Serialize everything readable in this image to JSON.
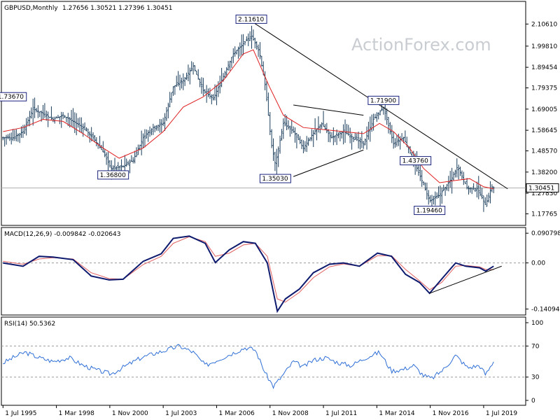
{
  "chart_data": [
    {
      "type": "candlestick",
      "symbol": "GBPUSD",
      "header": {
        "symbol_timeframe": "GBPUSD,Monthly",
        "ohlc": "1.27656 1.30521 1.27396 1.30451"
      },
      "watermark": "ActionForex.com",
      "ylim": [
        1.128,
        2.21
      ],
      "y_ticks": [
        "2.10610",
        "1.99810",
        "1.89454",
        "1.79375",
        "1.69005",
        "1.58645",
        "1.48570",
        "1.38200",
        "1.27830",
        "1.17765"
      ],
      "current_price_label": "1.30451",
      "current_price": 1.30451,
      "x_ticks": [
        "1 Jul 1995",
        "1 Mar 1998",
        "1 Nov 2000",
        "1 Jul 2003",
        "1 Mar 2006",
        "1 Nov 2008",
        "1 Jul 2011",
        "1 Mar 2014",
        "1 Nov 2016",
        "1 Jul 2019"
      ],
      "annotations": [
        {
          "label": "2.11610",
          "date": 2007.9,
          "value": 2.1161
        },
        {
          "label": "1.73670",
          "date": 1995.9,
          "value": 1.7367
        },
        {
          "label": "1.36800",
          "date": 2001.0,
          "value": 1.368
        },
        {
          "label": "1.35030",
          "date": 2009.1,
          "value": 1.3503
        },
        {
          "label": "1.71900",
          "date": 2014.5,
          "value": 1.719
        },
        {
          "label": "1.43760",
          "date": 2016.1,
          "value": 1.4376
        },
        {
          "label": "1.19460",
          "date": 2016.8,
          "value": 1.1946
        }
      ],
      "series": [
        {
          "name": "price",
          "points": [
            [
              1995.5,
              1.55
            ],
            [
              1996.0,
              1.55
            ],
            [
              1996.5,
              1.58
            ],
            [
              1997.0,
              1.69
            ],
            [
              1997.5,
              1.67
            ],
            [
              1998.0,
              1.64
            ],
            [
              1998.5,
              1.66
            ],
            [
              1999.0,
              1.63
            ],
            [
              1999.5,
              1.6
            ],
            [
              2000.0,
              1.55
            ],
            [
              2000.5,
              1.48
            ],
            [
              2000.9,
              1.4
            ],
            [
              2001.5,
              1.41
            ],
            [
              2002.0,
              1.44
            ],
            [
              2002.5,
              1.55
            ],
            [
              2003.0,
              1.6
            ],
            [
              2003.5,
              1.62
            ],
            [
              2004.0,
              1.8
            ],
            [
              2004.5,
              1.83
            ],
            [
              2005.0,
              1.9
            ],
            [
              2005.5,
              1.78
            ],
            [
              2006.0,
              1.74
            ],
            [
              2006.5,
              1.85
            ],
            [
              2007.0,
              1.96
            ],
            [
              2007.5,
              2.01
            ],
            [
              2007.9,
              2.05
            ],
            [
              2008.3,
              1.97
            ],
            [
              2008.6,
              1.8
            ],
            [
              2008.9,
              1.52
            ],
            [
              2009.1,
              1.42
            ],
            [
              2009.5,
              1.62
            ],
            [
              2010.0,
              1.58
            ],
            [
              2010.5,
              1.5
            ],
            [
              2010.9,
              1.56
            ],
            [
              2011.4,
              1.62
            ],
            [
              2011.9,
              1.55
            ],
            [
              2012.5,
              1.58
            ],
            [
              2013.0,
              1.55
            ],
            [
              2013.5,
              1.52
            ],
            [
              2014.0,
              1.64
            ],
            [
              2014.5,
              1.7
            ],
            [
              2015.0,
              1.52
            ],
            [
              2015.5,
              1.55
            ],
            [
              2016.0,
              1.44
            ],
            [
              2016.5,
              1.32
            ],
            [
              2016.8,
              1.24
            ],
            [
              2017.3,
              1.27
            ],
            [
              2017.9,
              1.35
            ],
            [
              2018.2,
              1.41
            ],
            [
              2018.7,
              1.3
            ],
            [
              2019.2,
              1.3
            ],
            [
              2019.6,
              1.22
            ],
            [
              2019.9,
              1.31
            ],
            [
              2020.0,
              1.3045
            ]
          ]
        },
        {
          "name": "moving-average",
          "points": [
            [
              1995.5,
              1.58
            ],
            [
              1996.5,
              1.6
            ],
            [
              1997.5,
              1.64
            ],
            [
              1998.5,
              1.63
            ],
            [
              1999.5,
              1.57
            ],
            [
              2000.5,
              1.5
            ],
            [
              2001.3,
              1.45
            ],
            [
              2002.5,
              1.5
            ],
            [
              2003.5,
              1.58
            ],
            [
              2004.5,
              1.7
            ],
            [
              2005.5,
              1.75
            ],
            [
              2006.5,
              1.83
            ],
            [
              2007.5,
              1.96
            ],
            [
              2008.0,
              1.98
            ],
            [
              2008.8,
              1.8
            ],
            [
              2009.5,
              1.66
            ],
            [
              2010.5,
              1.6
            ],
            [
              2011.5,
              1.59
            ],
            [
              2012.5,
              1.58
            ],
            [
              2013.5,
              1.57
            ],
            [
              2014.3,
              1.62
            ],
            [
              2015.0,
              1.58
            ],
            [
              2015.8,
              1.5
            ],
            [
              2016.5,
              1.4
            ],
            [
              2017.3,
              1.33
            ],
            [
              2018.0,
              1.34
            ],
            [
              2018.8,
              1.35
            ],
            [
              2019.5,
              1.31
            ],
            [
              2020.0,
              1.3
            ]
          ]
        }
      ],
      "trendlines": [
        [
          [
            2007.9,
            2.12
          ],
          [
            2020.7,
            1.3
          ]
        ],
        [
          [
            2010.0,
            1.71
          ],
          [
            2013.5,
            1.66
          ]
        ],
        [
          [
            2010.0,
            1.36
          ],
          [
            2013.5,
            1.49
          ]
        ]
      ]
    },
    {
      "type": "line",
      "title": "MACD(12,26,9) -0.009842 -0.020643",
      "ylim": [
        -0.155,
        0.104
      ],
      "y_ticks": [
        "0.090798",
        "0.00",
        "-0.14094"
      ],
      "zero_label": "0.00",
      "series": [
        {
          "name": "MACD",
          "points": [
            [
              1995.5,
              0.0
            ],
            [
              1996.5,
              -0.01
            ],
            [
              1997.3,
              0.02
            ],
            [
              1998.0,
              0.018
            ],
            [
              1999.0,
              0.01
            ],
            [
              1999.9,
              -0.04
            ],
            [
              2000.8,
              -0.052
            ],
            [
              2001.5,
              -0.05
            ],
            [
              2002.5,
              0.005
            ],
            [
              2003.4,
              0.028
            ],
            [
              2004.0,
              0.075
            ],
            [
              2004.8,
              0.082
            ],
            [
              2005.6,
              0.06
            ],
            [
              2006.1,
              0.001
            ],
            [
              2006.8,
              0.04
            ],
            [
              2007.5,
              0.065
            ],
            [
              2008.1,
              0.06
            ],
            [
              2008.7,
              0.0
            ],
            [
              2009.2,
              -0.148
            ],
            [
              2009.6,
              -0.11
            ],
            [
              2010.3,
              -0.08
            ],
            [
              2011.0,
              -0.03
            ],
            [
              2011.8,
              -0.004
            ],
            [
              2012.5,
              0.0
            ],
            [
              2013.3,
              -0.01
            ],
            [
              2014.2,
              0.03
            ],
            [
              2014.9,
              0.02
            ],
            [
              2015.6,
              -0.035
            ],
            [
              2016.3,
              -0.06
            ],
            [
              2016.8,
              -0.093
            ],
            [
              2017.4,
              -0.05
            ],
            [
              2018.1,
              0.0
            ],
            [
              2018.6,
              -0.01
            ],
            [
              2019.3,
              -0.015
            ],
            [
              2019.6,
              -0.025
            ],
            [
              2020.0,
              -0.01
            ]
          ]
        },
        {
          "name": "signal",
          "points": [
            [
              1995.5,
              0.005
            ],
            [
              1996.5,
              -0.004
            ],
            [
              1997.3,
              0.012
            ],
            [
              1998.0,
              0.016
            ],
            [
              1999.0,
              0.012
            ],
            [
              1999.9,
              -0.03
            ],
            [
              2000.8,
              -0.048
            ],
            [
              2001.5,
              -0.05
            ],
            [
              2002.5,
              -0.005
            ],
            [
              2003.4,
              0.02
            ],
            [
              2004.0,
              0.06
            ],
            [
              2004.8,
              0.08
            ],
            [
              2005.6,
              0.065
            ],
            [
              2006.1,
              0.02
            ],
            [
              2006.8,
              0.03
            ],
            [
              2007.5,
              0.055
            ],
            [
              2008.1,
              0.06
            ],
            [
              2008.7,
              0.02
            ],
            [
              2009.2,
              -0.11
            ],
            [
              2009.6,
              -0.12
            ],
            [
              2010.3,
              -0.09
            ],
            [
              2011.0,
              -0.045
            ],
            [
              2011.8,
              -0.012
            ],
            [
              2012.5,
              -0.003
            ],
            [
              2013.3,
              -0.01
            ],
            [
              2014.2,
              0.022
            ],
            [
              2014.9,
              0.022
            ],
            [
              2015.6,
              -0.02
            ],
            [
              2016.3,
              -0.055
            ],
            [
              2016.8,
              -0.082
            ],
            [
              2017.4,
              -0.06
            ],
            [
              2018.1,
              -0.01
            ],
            [
              2018.6,
              -0.008
            ],
            [
              2019.3,
              -0.012
            ],
            [
              2019.6,
              -0.02
            ],
            [
              2020.0,
              -0.021
            ]
          ]
        }
      ],
      "trendlines": [
        [
          [
            2016.8,
            -0.093
          ],
          [
            2020.4,
            -0.01
          ]
        ]
      ]
    },
    {
      "type": "line",
      "title": "RSI(14) 50.5362",
      "ylim": [
        0,
        100
      ],
      "y_ticks": [
        "100",
        "70",
        "30",
        "0"
      ],
      "levels": [
        70,
        30
      ],
      "series": [
        {
          "name": "RSI",
          "points": [
            [
              1995.5,
              48
            ],
            [
              1996.0,
              55
            ],
            [
              1996.6,
              62
            ],
            [
              1997.3,
              55
            ],
            [
              1998.0,
              50
            ],
            [
              1998.8,
              55
            ],
            [
              1999.5,
              45
            ],
            [
              2000.3,
              38
            ],
            [
              2000.9,
              34
            ],
            [
              2001.6,
              44
            ],
            [
              2002.4,
              55
            ],
            [
              2003.0,
              60
            ],
            [
              2003.7,
              65
            ],
            [
              2004.3,
              70
            ],
            [
              2005.0,
              62
            ],
            [
              2005.6,
              45
            ],
            [
              2006.2,
              52
            ],
            [
              2006.9,
              60
            ],
            [
              2007.6,
              68
            ],
            [
              2008.1,
              65
            ],
            [
              2008.6,
              35
            ],
            [
              2009.0,
              18
            ],
            [
              2009.4,
              30
            ],
            [
              2010.0,
              50
            ],
            [
              2010.5,
              43
            ],
            [
              2011.0,
              52
            ],
            [
              2011.6,
              55
            ],
            [
              2012.3,
              48
            ],
            [
              2012.9,
              45
            ],
            [
              2013.6,
              55
            ],
            [
              2014.3,
              62
            ],
            [
              2014.9,
              38
            ],
            [
              2015.5,
              40
            ],
            [
              2016.0,
              45
            ],
            [
              2016.5,
              32
            ],
            [
              2016.9,
              28
            ],
            [
              2017.5,
              40
            ],
            [
              2018.1,
              58
            ],
            [
              2018.7,
              42
            ],
            [
              2019.3,
              45
            ],
            [
              2019.6,
              33
            ],
            [
              2020.0,
              50.5
            ]
          ]
        }
      ]
    }
  ]
}
